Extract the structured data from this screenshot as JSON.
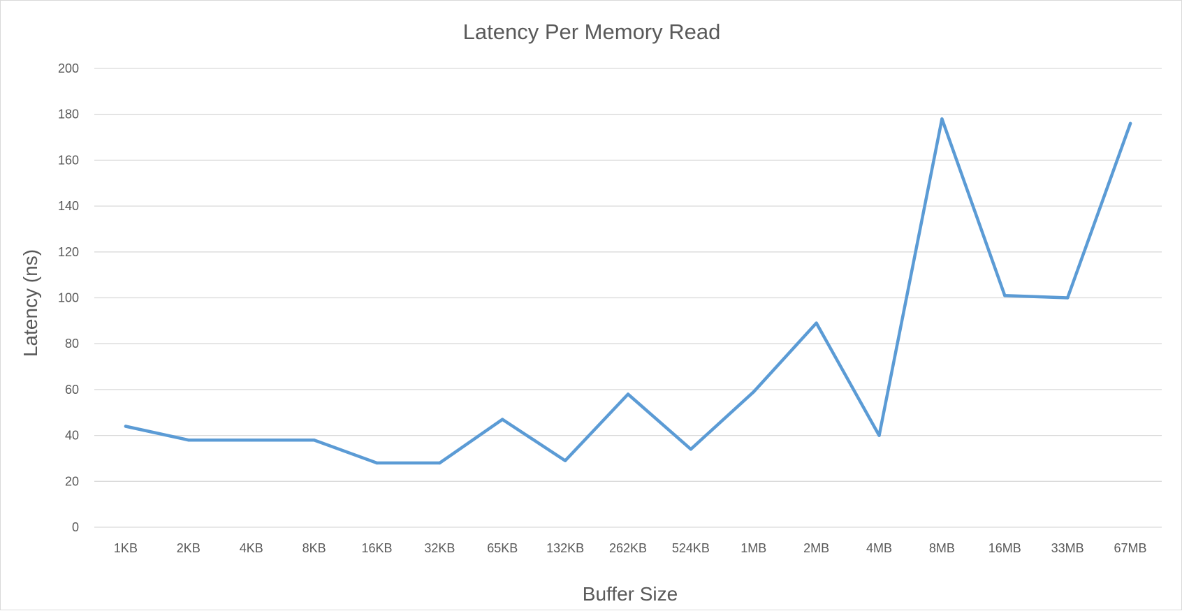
{
  "chart_data": {
    "type": "line",
    "title": "Latency Per Memory Read",
    "xlabel": "Buffer Size",
    "ylabel": "Latency (ns)",
    "ylim": [
      0,
      200
    ],
    "yticks": [
      "0",
      "20",
      "40",
      "60",
      "80",
      "100",
      "120",
      "140",
      "160",
      "180",
      "200"
    ],
    "categories": [
      "1KB",
      "2KB",
      "4KB",
      "8KB",
      "16KB",
      "32KB",
      "65KB",
      "132KB",
      "262KB",
      "524KB",
      "1MB",
      "2MB",
      "4MB",
      "8MB",
      "16MB",
      "33MB",
      "67MB"
    ],
    "series": [
      {
        "values": [
          44,
          38,
          38,
          38,
          28,
          28,
          47,
          29,
          58,
          34,
          59,
          89,
          40,
          178,
          101,
          100,
          176
        ],
        "color": "#5b9bd5"
      }
    ],
    "grid": true,
    "legend": "none"
  }
}
